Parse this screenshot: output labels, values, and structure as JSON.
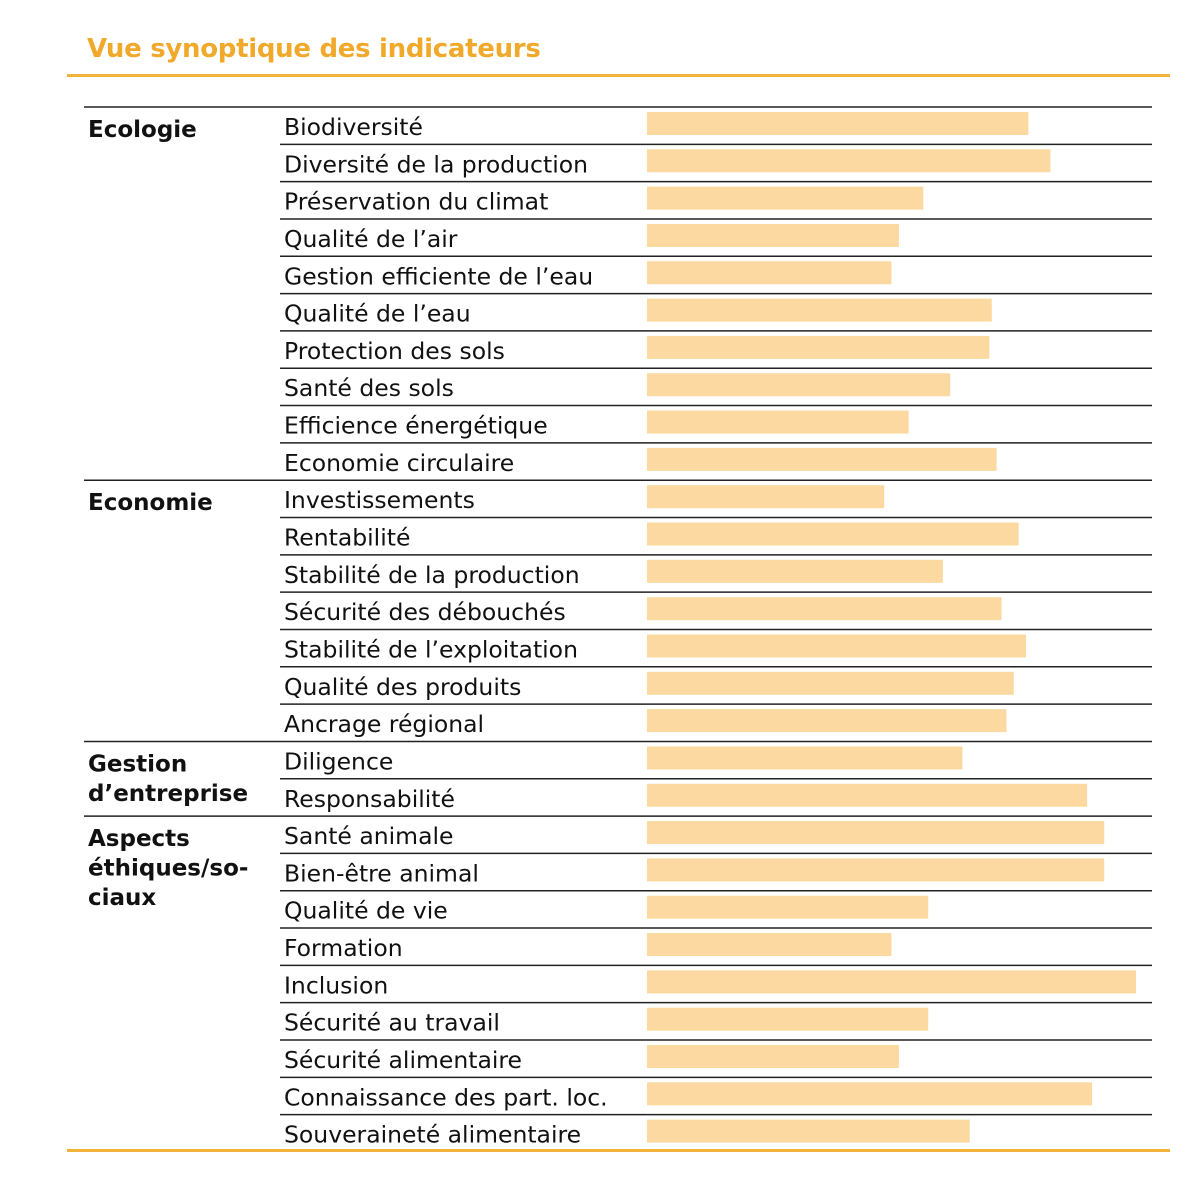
{
  "header": {
    "title": "Vue synoptique des indicateurs"
  },
  "colors": {
    "accent": "#f0a92b",
    "bar": "#fcd9a0",
    "rule": "#222222"
  },
  "chart_data": {
    "type": "bar",
    "orientation": "horizontal",
    "title": "Vue synoptique des indicateurs",
    "xlim": [
      0,
      100
    ],
    "grid": false,
    "categories": [
      {
        "name": "Ecologie",
        "name_lines": [
          "Ecologie"
        ],
        "items": [
          {
            "label": "Biodiversité",
            "value": 78
          },
          {
            "label": "Diversité de la production",
            "value": 82.5
          },
          {
            "label": "Préservation du climat",
            "value": 56.5
          },
          {
            "label": "Qualité de l’air",
            "value": 51.5
          },
          {
            "label": "Gestion efficiente de l’eau",
            "value": 50
          },
          {
            "label": "Qualité de l’eau",
            "value": 70.5
          },
          {
            "label": "Protection des sols",
            "value": 70
          },
          {
            "label": "Santé des sols",
            "value": 62
          },
          {
            "label": "Efficience énergétique",
            "value": 53.5
          },
          {
            "label": "Economie circulaire",
            "value": 71.5
          }
        ]
      },
      {
        "name": "Economie",
        "name_lines": [
          "Economie"
        ],
        "items": [
          {
            "label": "Investissements",
            "value": 48.5
          },
          {
            "label": "Rentabilité",
            "value": 76
          },
          {
            "label": "Stabilité de la production",
            "value": 60.5
          },
          {
            "label": "Sécurité des débouchés",
            "value": 72.5
          },
          {
            "label": "Stabilité de l’exploitation",
            "value": 77.5
          },
          {
            "label": "Qualité des produits",
            "value": 75
          },
          {
            "label": "Ancrage régional",
            "value": 73.5
          }
        ]
      },
      {
        "name": "Gestion d’entreprise",
        "name_lines": [
          "Gestion",
          "d’entreprise"
        ],
        "items": [
          {
            "label": "Diligence",
            "value": 64.5
          },
          {
            "label": "Responsabilité",
            "value": 90
          }
        ]
      },
      {
        "name": "Aspects éthiques/sociaux",
        "name_lines": [
          "Aspects",
          "éthiques/so-",
          "ciaux"
        ],
        "items": [
          {
            "label": "Santé animale",
            "value": 93.5
          },
          {
            "label": "Bien-être animal",
            "value": 93.5
          },
          {
            "label": "Qualité de vie",
            "value": 57.5
          },
          {
            "label": "Formation",
            "value": 50
          },
          {
            "label": "Inclusion",
            "value": 100
          },
          {
            "label": "Sécurité au travail",
            "value": 57.5
          },
          {
            "label": "Sécurité alimentaire",
            "value": 51.5
          },
          {
            "label": "Connaissance des part. loc.",
            "value": 91
          },
          {
            "label": "Souveraineté alimentaire",
            "value": 66
          }
        ]
      }
    ]
  }
}
